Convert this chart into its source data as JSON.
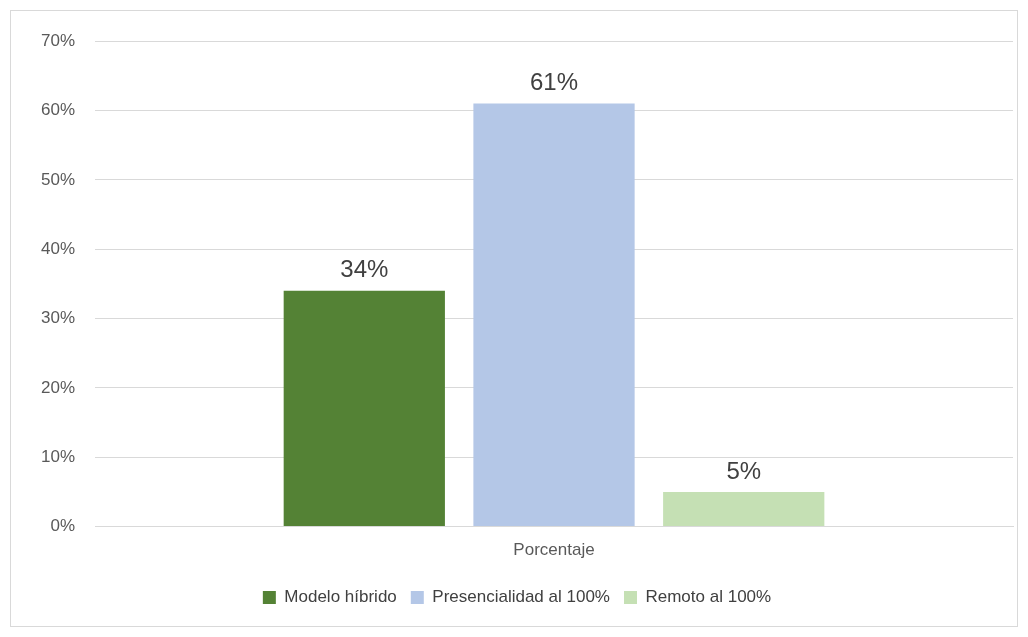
{
  "chart_data": {
    "type": "bar",
    "categories": [
      "Porcentaje"
    ],
    "series": [
      {
        "name": "Modelo híbrido",
        "color": "#548235",
        "values": [
          34
        ],
        "value_labels": [
          "34%"
        ]
      },
      {
        "name": "Presencialidad al 100%",
        "color": "#b4c7e7",
        "values": [
          61
        ],
        "value_labels": [
          "61%"
        ]
      },
      {
        "name": "Remoto al 100%",
        "color": "#c5e0b4",
        "values": [
          5
        ],
        "value_labels": [
          "5%"
        ]
      }
    ],
    "ylim": [
      0,
      70
    ],
    "yticks": [
      {
        "value": 0,
        "label": "0%"
      },
      {
        "value": 10,
        "label": "10%"
      },
      {
        "value": 20,
        "label": "20%"
      },
      {
        "value": 30,
        "label": "30%"
      },
      {
        "value": 40,
        "label": "40%"
      },
      {
        "value": 50,
        "label": "50%"
      },
      {
        "value": 60,
        "label": "60%"
      },
      {
        "value": 70,
        "label": "70%"
      }
    ],
    "grid": "y",
    "legend": "bottom"
  }
}
